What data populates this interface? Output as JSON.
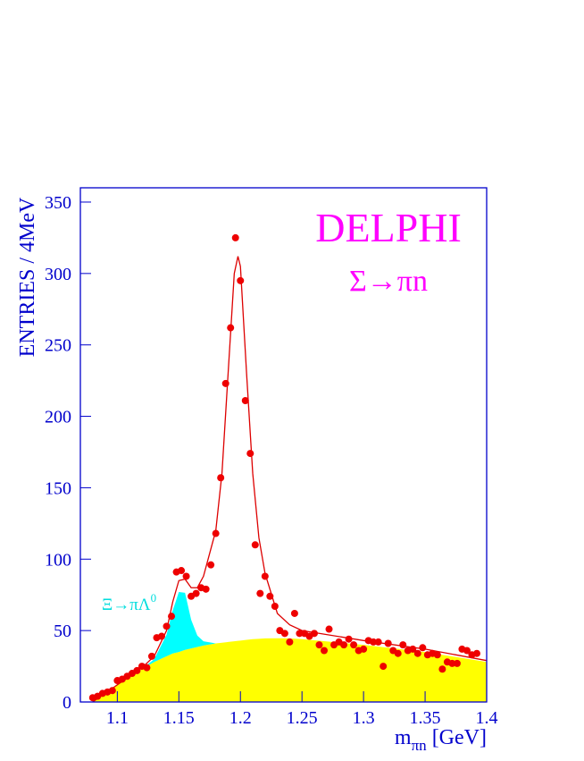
{
  "chart_data": {
    "type": "scatter",
    "title": "DELPHI",
    "subtitle": "Σ→πn",
    "y_label": "ENTRIES / 4MeV",
    "x_label": [
      "m",
      "πn",
      " [GeV]"
    ],
    "annotation": [
      "Ξ→πΛ",
      "0"
    ],
    "xlim": [
      1.07,
      1.4
    ],
    "ylim": [
      0,
      360
    ],
    "xticks": [
      1.1,
      1.15,
      1.2,
      1.25,
      1.3,
      1.35,
      1.4
    ],
    "yticks": [
      0,
      50,
      100,
      150,
      200,
      250,
      300,
      350
    ],
    "axis_color": "#0000cc",
    "title_color": "#ff00ff",
    "series": [
      {
        "type": "area",
        "color": "#ffff00",
        "x": [
          1.08,
          1.1,
          1.12,
          1.13,
          1.14,
          1.145,
          1.15,
          1.155,
          1.16,
          1.165,
          1.17,
          1.18,
          1.185,
          1.19,
          1.195,
          1.198,
          1.2,
          1.205,
          1.21,
          1.215,
          1.22,
          1.23,
          1.24,
          1.25,
          1.3,
          1.35,
          1.4
        ],
        "values": [
          0,
          12,
          23,
          28,
          32,
          34,
          35,
          36.5,
          37.5,
          38.5,
          39.5,
          41,
          41.5,
          42,
          42.5,
          42.8,
          43,
          43.5,
          44,
          44.2,
          44.5,
          44.6,
          44.5,
          44,
          40,
          35,
          28
        ]
      },
      {
        "type": "area",
        "stacked": true,
        "color": "#00ffff",
        "x": [
          1.08,
          1.1,
          1.12,
          1.13,
          1.14,
          1.145,
          1.15,
          1.155,
          1.16,
          1.165,
          1.17,
          1.18,
          1.185,
          1.19,
          1.195,
          1.198,
          1.2,
          1.205,
          1.21,
          1.215,
          1.22,
          1.23,
          1.24,
          1.25,
          1.3,
          1.35,
          1.4
        ],
        "values": [
          0,
          0,
          0,
          2,
          15,
          30,
          42,
          40,
          20,
          8,
          3,
          0,
          0,
          0,
          0,
          0,
          0,
          0,
          0,
          0,
          0,
          0,
          0,
          0,
          0,
          0,
          0
        ]
      },
      {
        "type": "line",
        "color": "#dd0000",
        "x": [
          1.08,
          1.1,
          1.12,
          1.13,
          1.14,
          1.145,
          1.15,
          1.155,
          1.16,
          1.165,
          1.17,
          1.18,
          1.185,
          1.19,
          1.195,
          1.198,
          1.2,
          1.205,
          1.21,
          1.215,
          1.22,
          1.23,
          1.24,
          1.25,
          1.3,
          1.35,
          1.4
        ],
        "values": [
          0,
          12,
          24,
          32,
          50,
          70,
          85,
          86,
          80,
          80,
          88,
          120,
          160,
          230,
          300,
          312,
          305,
          230,
          160,
          115,
          90,
          62,
          54,
          50,
          43,
          37,
          29
        ]
      },
      {
        "type": "scatter",
        "color": "#ee0000",
        "x": [
          1.08,
          1.084,
          1.088,
          1.092,
          1.096,
          1.1,
          1.104,
          1.108,
          1.112,
          1.116,
          1.12,
          1.124,
          1.128,
          1.132,
          1.136,
          1.14,
          1.144,
          1.148,
          1.152,
          1.156,
          1.16,
          1.164,
          1.168,
          1.172,
          1.176,
          1.18,
          1.184,
          1.188,
          1.192,
          1.196,
          1.2,
          1.204,
          1.208,
          1.212,
          1.216,
          1.22,
          1.224,
          1.228,
          1.232,
          1.236,
          1.24,
          1.244,
          1.248,
          1.252,
          1.256,
          1.26,
          1.264,
          1.268,
          1.272,
          1.276,
          1.28,
          1.284,
          1.288,
          1.292,
          1.296,
          1.3,
          1.304,
          1.308,
          1.312,
          1.316,
          1.32,
          1.324,
          1.328,
          1.332,
          1.336,
          1.34,
          1.344,
          1.348,
          1.352,
          1.356,
          1.36,
          1.364,
          1.368,
          1.372,
          1.376,
          1.38,
          1.384,
          1.388,
          1.392
        ],
        "values": [
          3,
          4,
          6,
          7,
          8,
          15,
          16,
          18,
          20,
          22,
          25,
          24,
          32,
          45,
          46,
          53,
          60,
          91,
          92,
          88,
          74,
          76,
          80,
          79,
          96,
          118,
          157,
          223,
          262,
          325,
          295,
          211,
          174,
          110,
          76,
          88,
          74,
          67,
          50,
          48,
          42,
          62,
          48,
          48,
          46,
          48,
          40,
          36,
          51,
          40,
          42,
          40,
          44,
          40,
          36,
          37,
          43,
          42,
          42,
          25,
          41,
          36,
          34,
          40,
          36,
          37,
          34,
          38,
          33,
          34,
          33,
          23,
          28,
          27,
          27,
          37,
          36,
          33,
          34
        ]
      }
    ]
  }
}
